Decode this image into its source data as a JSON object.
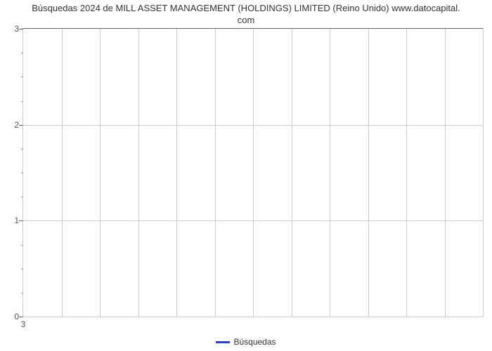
{
  "chart": {
    "type": "line",
    "title_line1": "Búsquedas 2024 de MILL ASSET MANAGEMENT (HOLDINGS) LIMITED (Reino Unido) www.datocapital.",
    "title_line2": "com",
    "title_fontsize": 13,
    "title_color": "#333333",
    "background_color": "#ffffff",
    "border_color": "#cccccc",
    "grid_color": "#cccccc",
    "axis_color": "#666666",
    "minor_tick_color": "#999999",
    "ylim": [
      0,
      3
    ],
    "ytick_step": 1,
    "y_minor_ticks_between": 3,
    "y_labels": [
      "0",
      "1",
      "2",
      "3"
    ],
    "x_vertical_gridlines": 12,
    "x_labels": [
      {
        "value": "3",
        "position_percent": 0
      }
    ],
    "legend": {
      "color": "#2040dd",
      "label": "Búsquedas"
    },
    "data_values": []
  }
}
